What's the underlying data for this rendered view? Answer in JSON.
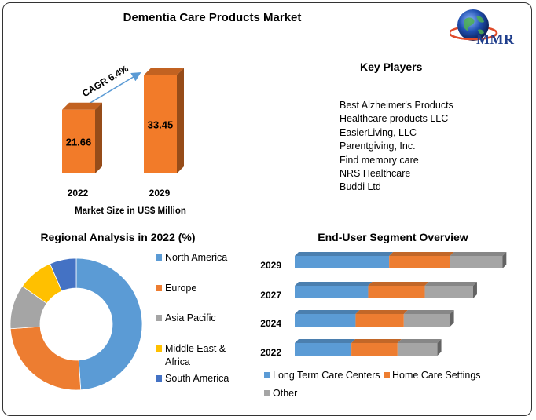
{
  "title": "Dementia Care Products Market",
  "logo": {
    "text": "MMR",
    "icon": "globe-icon"
  },
  "colors": {
    "blue": "#5b9bd5",
    "orange": "#ed7d31",
    "gray": "#a5a5a5",
    "yellow": "#ffc000",
    "darkblue": "#4472c4",
    "bar3d": "#f27b29",
    "arrow": "#5b9bd5"
  },
  "key_players": {
    "title": "Key Players",
    "items": [
      "Best Alzheimer's Products",
      "Healthcare products LLC",
      "EasierLiving, LLC",
      "Parentgiving, Inc.",
      "Find memory care",
      "NRS Healthcare",
      "Buddi Ltd"
    ]
  },
  "chart_data": [
    {
      "type": "bar",
      "categories": [
        "2022",
        "2029"
      ],
      "values": [
        21.66,
        33.45
      ],
      "value_labels": [
        "21.66",
        "33.45"
      ],
      "xlabel": "Market Size in US$ Million",
      "annotation": "CAGR 6.4%"
    },
    {
      "type": "pie",
      "title": "Regional Analysis in 2022 (%)",
      "labels": [
        "North America",
        "Europe",
        "Asia Pacific",
        "Middle East & Africa",
        "South America"
      ],
      "values": [
        45,
        23,
        10,
        8,
        6
      ],
      "colors": [
        "#5b9bd5",
        "#ed7d31",
        "#a5a5a5",
        "#ffc000",
        "#4472c4"
      ],
      "legend_position": "right"
    },
    {
      "type": "bar",
      "orientation": "horizontal",
      "stacked": true,
      "title": "End-User Segment Overview",
      "categories": [
        "2029",
        "2027",
        "2024",
        "2022"
      ],
      "series": [
        {
          "name": "Long Term Care Centers",
          "color": "#5b9bd5",
          "values": [
            45,
            35,
            29,
            27
          ]
        },
        {
          "name": "Home Care Settings",
          "color": "#ed7d31",
          "values": [
            29,
            27,
            23,
            22
          ]
        },
        {
          "name": "Other",
          "color": "#a5a5a5",
          "values": [
            25,
            23,
            22,
            19
          ]
        }
      ],
      "legend_position": "bottom"
    }
  ]
}
